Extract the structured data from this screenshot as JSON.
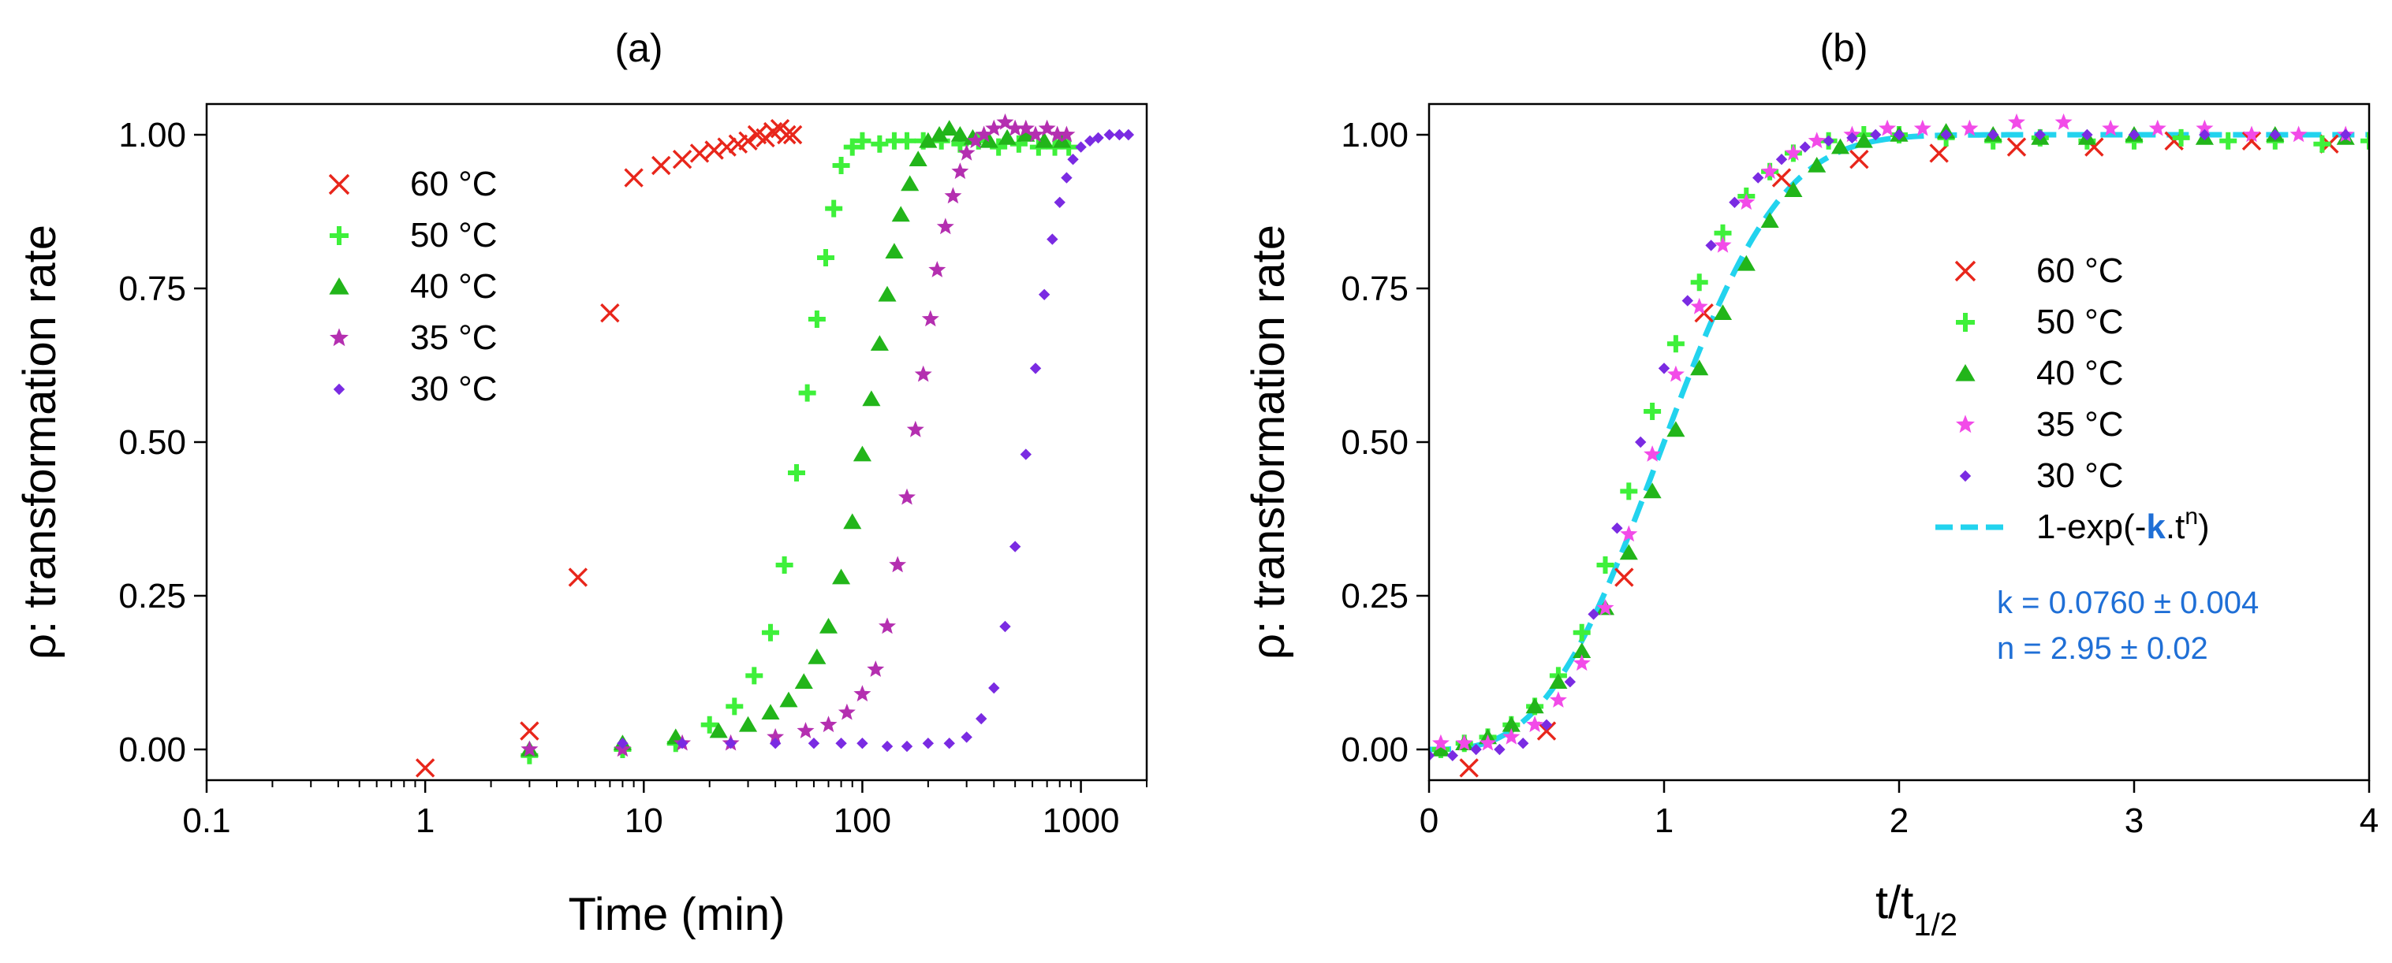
{
  "chart_data": [
    {
      "type": "scatter",
      "panel_label": "(a)",
      "xlabel": "Time (min)",
      "ylabel": "ρ: transformation rate",
      "xscale": "log",
      "xlim": [
        0.1,
        2000
      ],
      "ylim": [
        -0.05,
        1.05
      ],
      "xticks": [
        0.1,
        1,
        10,
        100,
        1000
      ],
      "xtick_labels": [
        "0.1",
        "1",
        "10",
        "100",
        "1000"
      ],
      "yticks": [
        0,
        0.25,
        0.5,
        0.75,
        1.0
      ],
      "ytick_labels": [
        "0.00",
        "0.25",
        "0.50",
        "0.75",
        "1.00"
      ],
      "legend_position": "upper-left",
      "series": [
        {
          "name": "60 °C",
          "marker": "x",
          "color": "#e8261b",
          "x": [
            1,
            3,
            5,
            7,
            9,
            12,
            15,
            18,
            21,
            24,
            27,
            30,
            33,
            36,
            39,
            42,
            45,
            48
          ],
          "y": [
            -0.03,
            0.03,
            0.28,
            0.71,
            0.93,
            0.95,
            0.96,
            0.97,
            0.975,
            0.98,
            0.985,
            0.99,
            1.0,
            0.995,
            1.005,
            1.01,
            1.0,
            1.0
          ]
        },
        {
          "name": "50 °C",
          "marker": "plus",
          "color": "#3ef03a",
          "x": [
            3,
            8,
            14,
            20,
            26,
            32,
            38,
            44,
            50,
            56,
            62,
            68,
            74,
            80,
            90,
            100,
            120,
            140,
            160,
            190,
            230,
            280,
            340,
            420,
            520,
            640,
            760,
            880
          ],
          "y": [
            -0.01,
            0.0,
            0.01,
            0.04,
            0.07,
            0.12,
            0.19,
            0.3,
            0.45,
            0.58,
            0.7,
            0.8,
            0.88,
            0.95,
            0.98,
            0.99,
            0.985,
            0.99,
            0.99,
            0.99,
            0.99,
            0.985,
            0.99,
            0.98,
            0.985,
            0.98,
            0.98,
            0.98
          ]
        },
        {
          "name": "40 °C",
          "marker": "triangle",
          "color": "#22b51a",
          "x": [
            3,
            8,
            14,
            22,
            30,
            38,
            46,
            54,
            62,
            70,
            80,
            90,
            100,
            110,
            120,
            130,
            140,
            150,
            165,
            180,
            200,
            225,
            250,
            280,
            320,
            380,
            460,
            560,
            680,
            820
          ],
          "y": [
            0.0,
            0.01,
            0.02,
            0.03,
            0.04,
            0.06,
            0.08,
            0.11,
            0.15,
            0.2,
            0.28,
            0.37,
            0.48,
            0.57,
            0.66,
            0.74,
            0.81,
            0.87,
            0.92,
            0.96,
            0.99,
            1.0,
            1.01,
            1.0,
            0.995,
            0.99,
            0.995,
            1.0,
            0.99,
            0.99
          ]
        },
        {
          "name": "35 °C",
          "marker": "star",
          "color": "#b42fb0",
          "x": [
            3,
            8,
            15,
            25,
            40,
            55,
            70,
            85,
            100,
            115,
            130,
            145,
            160,
            175,
            190,
            205,
            220,
            240,
            260,
            280,
            300,
            330,
            360,
            400,
            450,
            500,
            560,
            620,
            700,
            780,
            860
          ],
          "y": [
            0.0,
            0.0,
            0.01,
            0.01,
            0.02,
            0.03,
            0.04,
            0.06,
            0.09,
            0.13,
            0.2,
            0.3,
            0.41,
            0.52,
            0.61,
            0.7,
            0.78,
            0.85,
            0.9,
            0.94,
            0.97,
            0.99,
            1.0,
            1.01,
            1.02,
            1.01,
            1.01,
            1.0,
            1.01,
            1.0,
            1.0
          ]
        },
        {
          "name": "30 °C",
          "marker": "diamond",
          "color": "#7a2be2",
          "x": [
            8,
            15,
            25,
            40,
            60,
            80,
            100,
            130,
            160,
            200,
            250,
            300,
            350,
            400,
            450,
            500,
            560,
            620,
            680,
            740,
            800,
            860,
            920,
            1000,
            1100,
            1200,
            1350,
            1500,
            1650
          ],
          "y": [
            0.01,
            0.01,
            0.01,
            0.01,
            0.01,
            0.01,
            0.01,
            0.005,
            0.005,
            0.01,
            0.01,
            0.02,
            0.05,
            0.1,
            0.2,
            0.33,
            0.48,
            0.62,
            0.74,
            0.83,
            0.89,
            0.93,
            0.96,
            0.98,
            0.99,
            0.995,
            1.0,
            1.0,
            1.0
          ]
        }
      ]
    },
    {
      "type": "scatter",
      "panel_label": "(b)",
      "xlabel": "t/t",
      "xlabel_subscript": "1/2",
      "ylabel": "ρ: transformation rate",
      "xscale": "linear",
      "xlim": [
        0,
        4
      ],
      "ylim": [
        -0.05,
        1.05
      ],
      "xticks": [
        0,
        1,
        2,
        3,
        4
      ],
      "xtick_labels": [
        "0",
        "1",
        "2",
        "3",
        "4"
      ],
      "yticks": [
        0,
        0.25,
        0.5,
        0.75,
        1.0
      ],
      "ytick_labels": [
        "0.00",
        "0.25",
        "0.50",
        "0.75",
        "1.00"
      ],
      "legend_position": "center-right",
      "series": [
        {
          "name": "60 °C",
          "marker": "x",
          "color": "#e8261b",
          "x": [
            0.17,
            0.5,
            0.83,
            1.17,
            1.5,
            1.83,
            2.17,
            2.5,
            2.83,
            3.17,
            3.5,
            3.83
          ],
          "y": [
            -0.03,
            0.03,
            0.28,
            0.71,
            0.93,
            0.96,
            0.97,
            0.98,
            0.98,
            0.99,
            0.99,
            0.985
          ]
        },
        {
          "name": "50 °C",
          "marker": "plus",
          "color": "#3ef03a",
          "x": [
            0.05,
            0.15,
            0.25,
            0.35,
            0.45,
            0.55,
            0.65,
            0.75,
            0.85,
            0.95,
            1.05,
            1.15,
            1.25,
            1.35,
            1.45,
            1.55,
            1.7,
            1.85,
            2.0,
            2.2,
            2.4,
            2.6,
            2.8,
            3.0,
            3.2,
            3.4,
            3.6,
            3.8,
            4.0
          ],
          "y": [
            0.0,
            0.01,
            0.02,
            0.04,
            0.07,
            0.12,
            0.19,
            0.3,
            0.42,
            0.55,
            0.66,
            0.76,
            0.84,
            0.9,
            0.94,
            0.97,
            0.99,
            1.0,
            1.0,
            0.995,
            0.99,
            0.995,
            0.99,
            0.99,
            0.995,
            0.99,
            0.99,
            0.985,
            0.99
          ]
        },
        {
          "name": "40 °C",
          "marker": "triangle",
          "color": "#22b51a",
          "x": [
            0.05,
            0.15,
            0.25,
            0.35,
            0.45,
            0.55,
            0.65,
            0.75,
            0.85,
            0.95,
            1.05,
            1.15,
            1.25,
            1.35,
            1.45,
            1.55,
            1.65,
            1.75,
            1.85,
            2.0,
            2.2,
            2.4,
            2.6,
            2.8,
            3.0,
            3.3,
            3.6,
            3.9
          ],
          "y": [
            0.0,
            0.01,
            0.02,
            0.04,
            0.07,
            0.11,
            0.16,
            0.23,
            0.32,
            0.42,
            0.52,
            0.62,
            0.71,
            0.79,
            0.86,
            0.91,
            0.95,
            0.98,
            0.99,
            1.0,
            1.005,
            1.0,
            0.995,
            0.995,
            1.0,
            0.995,
            1.0,
            0.995
          ]
        },
        {
          "name": "35 °C",
          "marker": "star",
          "color": "#f24be8",
          "x": [
            0.05,
            0.15,
            0.25,
            0.35,
            0.45,
            0.55,
            0.65,
            0.75,
            0.85,
            0.95,
            1.05,
            1.15,
            1.25,
            1.35,
            1.45,
            1.55,
            1.65,
            1.8,
            1.95,
            2.1,
            2.3,
            2.5,
            2.7,
            2.9,
            3.1,
            3.3,
            3.5,
            3.7,
            3.9
          ],
          "y": [
            0.01,
            0.01,
            0.01,
            0.02,
            0.04,
            0.08,
            0.14,
            0.23,
            0.35,
            0.48,
            0.61,
            0.72,
            0.82,
            0.89,
            0.94,
            0.97,
            0.99,
            1.0,
            1.01,
            1.01,
            1.01,
            1.02,
            1.02,
            1.01,
            1.01,
            1.01,
            1.0,
            1.0,
            1.0
          ]
        },
        {
          "name": "30 °C",
          "marker": "diamond",
          "color": "#7a2be2",
          "x": [
            0.0,
            0.1,
            0.2,
            0.3,
            0.4,
            0.5,
            0.6,
            0.7,
            0.8,
            0.9,
            1.0,
            1.1,
            1.2,
            1.3,
            1.4,
            1.5,
            1.6,
            1.7,
            1.8,
            1.9,
            2.0,
            2.2,
            2.4,
            2.6,
            2.8,
            3.0,
            3.3,
            3.6,
            3.9
          ],
          "y": [
            -0.01,
            -0.01,
            0.0,
            0.0,
            0.01,
            0.04,
            0.11,
            0.22,
            0.36,
            0.5,
            0.62,
            0.73,
            0.82,
            0.89,
            0.93,
            0.96,
            0.98,
            0.99,
            0.995,
            1.0,
            1.0,
            1.0,
            1.0,
            1.0,
            1.0,
            1.0,
            1.0,
            1.0,
            1.0
          ]
        }
      ],
      "fit": {
        "name_prefix": "1-exp(-",
        "name_k": "k",
        "name_mid": ".t",
        "name_exp": "n",
        "name_suffix": ")",
        "color": "#22d3ee",
        "style": "dashed",
        "k": 0.076,
        "n": 2.95,
        "annotation_k": "k = 0.0760 ± 0.004",
        "annotation_n": "n = 2.95 ± 0.02"
      }
    }
  ]
}
